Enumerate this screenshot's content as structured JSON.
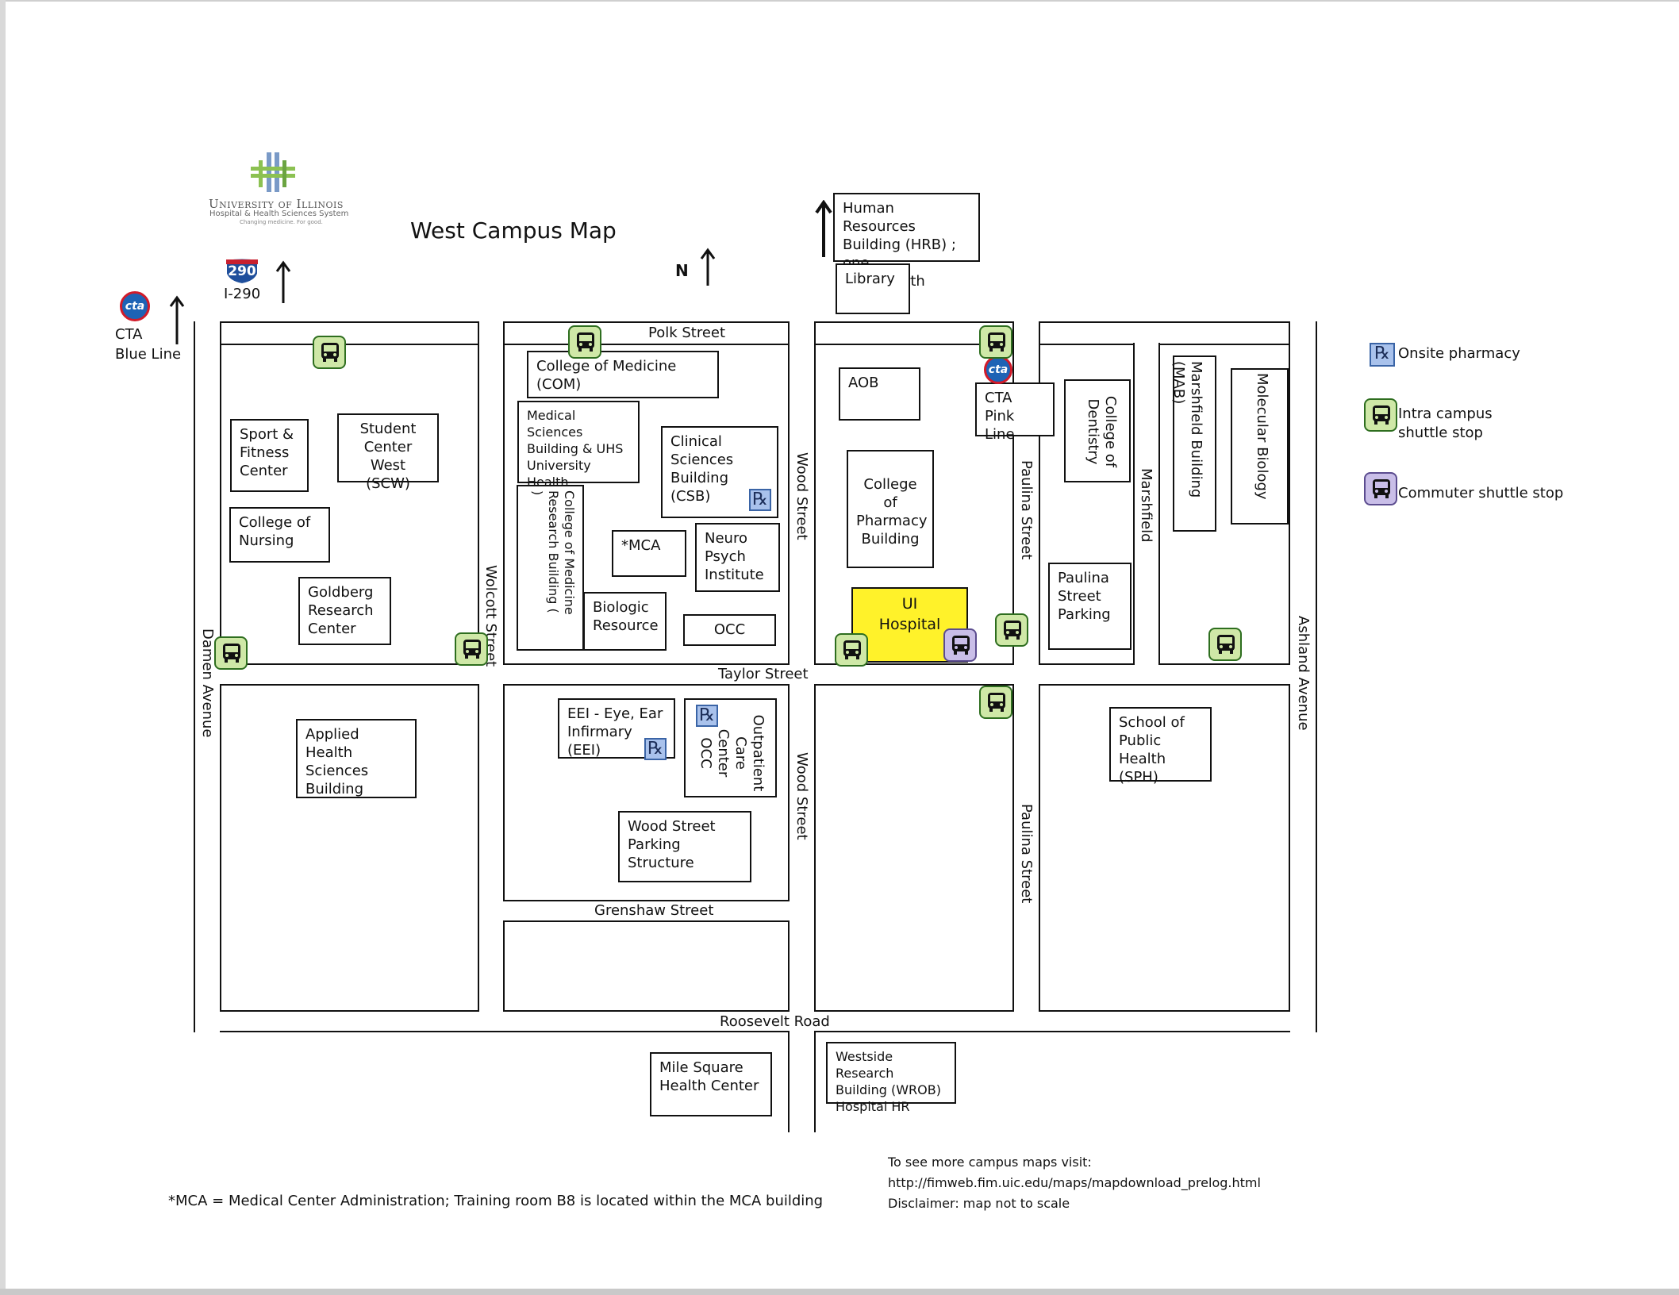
{
  "map": {
    "title": "West Campus Map",
    "north_label": "N",
    "logo": {
      "line1": "University of Illinois",
      "line2": "Hospital & Health Sciences System",
      "line3": "Changing medicine. For good."
    },
    "i290_shield": "290",
    "i290_label": "I-290",
    "cta_logo": "cta",
    "cta_blue_line": "CTA\nBlue Line",
    "hrb": "Human Resources\nBuilding (HRB) ; one\nblock North",
    "streets": {
      "polk": "Polk Street",
      "taylor": "Taylor Street",
      "grenshaw": "Grenshaw Street",
      "roosevelt": "Roosevelt Road",
      "damen": "Damen Avenue",
      "wolcott": "Wolcott Street",
      "wood_north": "Wood Street",
      "wood_south": "Wood Street",
      "paulina_north": "Paulina Street",
      "paulina_south": "Paulina Street",
      "marshfield": "Marshfield",
      "ashland": "Ashland Avenue"
    },
    "buildings": {
      "library": "Library",
      "sport_fitness": "Sport &\nFitness\nCenter",
      "student_center_west": "Student\nCenter West\n(SCW)",
      "college_nursing": "College of\nNursing",
      "goldberg": "Goldberg\nResearch\nCenter",
      "applied_health": "Applied Health\nSciences\nBuilding",
      "college_medicine": "College of Medicine (COM)",
      "medical_sciences": "Medical Sciences\nBuilding & UHS\nUniversity Health\nServices",
      "clinical_sciences": "Clinical\nSciences\nBuilding (CSB)",
      "com_research": "College of Medicine\nResearch Building (\n)",
      "mca": "*MCA",
      "neuro_psych": "Neuro\nPsych\nInstitute",
      "biologic_resource": "Biologic\nResource",
      "occ_north": "OCC",
      "eei": "EEI - Eye, Ear\nInfirmary (EEI)",
      "outpatient_care": "Outpatient\nCare Center\nOCC",
      "wood_parking": "Wood Street\nParking Structure",
      "aob": "AOB",
      "college_pharmacy": "College of\nPharmacy\nBuilding",
      "ui_hospital": "UI\nHospital",
      "cta_pink": "CTA Pink\nLine",
      "college_dentistry": "College of\nDentistry",
      "marshfield_building": "Marshfield Building (MAB)",
      "molecular_biology": "Molecular Biology",
      "paulina_parking": "Paulina\nStreet\nParking",
      "school_public_health": "School of\nPublic\nHealth (SPH)",
      "mile_square": "Mile Square\nHealth Center",
      "wrob": "Westside Research\nBuilding (WROB)\nHospital HR"
    },
    "legend": {
      "rx_symbol": "℞",
      "onsite_pharmacy": "Onsite pharmacy",
      "intra_shuttle": "Intra campus\nshuttle stop",
      "commuter_shuttle": "Commuter shuttle stop"
    },
    "footnote": "*MCA = Medical Center Administration; Training room B8 is located within the MCA building",
    "more_maps": "To see more campus maps visit:\nhttp://fimweb.fim.uic.edu/maps/mapdownload_prelog.html\nDisclaimer: map not to scale",
    "colors": {
      "hospital": "#fff22a",
      "intra_shuttle": "#cfe8a7",
      "commuter_shuttle": "#c9bee8",
      "pharmacy": "#a9c2ec",
      "cta_blue": "#1e63b5",
      "cta_red": "#d11b2a"
    }
  }
}
